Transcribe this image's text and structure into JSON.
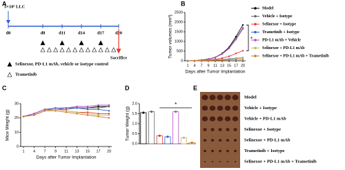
{
  "timeline": {
    "panel": "A",
    "inoculation": "5×10⁵ LLC",
    "days": [
      "d0",
      "d8",
      "d11",
      "d14",
      "d17",
      "d20"
    ],
    "end": "Sacrifice",
    "legend": [
      "Selinexor, PD-L1 mAb, vehicle or isotype control",
      "Trametinib"
    ]
  },
  "chart_data": [
    {
      "type": "line",
      "panel": "B",
      "xlabel": "Days after Tumor Implantation",
      "ylabel": "Tumor volumes (mm³)",
      "categories": [
        "1",
        "4",
        "7",
        "9",
        "11",
        "13",
        "15",
        "17",
        "20"
      ],
      "ylim": [
        0,
        2500
      ],
      "yticks": [
        0,
        500,
        1000,
        1500,
        2000,
        2500
      ],
      "annotation": "*",
      "legend": "right",
      "series": [
        {
          "name": "Model",
          "color": "#000000",
          "values": [
            0,
            10,
            40,
            90,
            180,
            380,
            700,
            1250,
            1850
          ]
        },
        {
          "name": "Vehicle + Isotype",
          "color": "#666666",
          "values": [
            0,
            10,
            40,
            80,
            170,
            360,
            650,
            1150,
            1700
          ]
        },
        {
          "name": "Selinexor + Isotype",
          "color": "#e8392f",
          "values": [
            0,
            5,
            20,
            40,
            80,
            140,
            230,
            380,
            520
          ]
        },
        {
          "name": "Trametinib + Isotype",
          "color": "#2f5fd0",
          "values": [
            0,
            5,
            15,
            30,
            50,
            70,
            100,
            130,
            160
          ]
        },
        {
          "name": "PD-L1 mAb + Vehicle",
          "color": "#b04fc4",
          "values": [
            0,
            10,
            35,
            80,
            170,
            350,
            640,
            1100,
            1650
          ]
        },
        {
          "name": "Selinexor + PD-L1 mAb",
          "color": "#c8b560",
          "values": [
            0,
            5,
            15,
            25,
            40,
            60,
            80,
            110,
            140
          ]
        },
        {
          "name": "Selinexor + PD-L1 mAb + Trametinib",
          "color": "#c87a1e",
          "values": [
            0,
            5,
            10,
            20,
            30,
            40,
            50,
            60,
            70
          ]
        }
      ]
    },
    {
      "type": "line",
      "panel": "C",
      "xlabel": "Days after Tumor Implantation",
      "ylabel": "Mice Weight (g)",
      "categories": [
        "1",
        "4",
        "7",
        "9",
        "11",
        "13",
        "15",
        "17",
        "20"
      ],
      "ylim": [
        0,
        30
      ],
      "yticks": [
        0,
        10,
        20,
        30
      ],
      "series": [
        {
          "color": "#000000",
          "values": [
            21,
            23,
            26,
            26,
            27,
            27,
            27,
            28,
            28
          ]
        },
        {
          "color": "#666666",
          "values": [
            21,
            23,
            26,
            26,
            26,
            27,
            27,
            27,
            28
          ]
        },
        {
          "color": "#e8392f",
          "values": [
            21,
            22,
            25,
            26,
            25,
            24,
            24,
            23,
            23
          ]
        },
        {
          "color": "#2f5fd0",
          "values": [
            21,
            23,
            26,
            27,
            27,
            27,
            26,
            26,
            25
          ]
        },
        {
          "color": "#b04fc4",
          "values": [
            21,
            23,
            26,
            26,
            27,
            28,
            28,
            29,
            29
          ]
        },
        {
          "color": "#c8b560",
          "values": [
            21,
            22,
            25,
            26,
            25,
            24,
            23,
            22,
            22
          ]
        },
        {
          "color": "#c87a1e",
          "values": [
            21,
            22,
            25,
            25,
            24,
            23,
            22,
            21,
            20
          ]
        }
      ]
    },
    {
      "type": "bar",
      "panel": "D",
      "ylabel": "Tumor Weight (g)",
      "values": [
        1.55,
        1.6,
        0.4,
        0.35,
        1.6,
        0.3,
        0.05
      ],
      "colors": [
        "#000000",
        "#666666",
        "#e8392f",
        "#2f5fd0",
        "#b04fc4",
        "#c8b560",
        "#c87a1e"
      ],
      "ylim": [
        0,
        2.0
      ],
      "yticks": [
        {
          "value": 0,
          "label": "0.0"
        },
        {
          "value": 0.5,
          "label": "0.5"
        },
        {
          "value": 1.0,
          "label": "1.0"
        },
        {
          "value": 1.5,
          "label": "1.5"
        },
        {
          "value": 2.0,
          "label": "2.0"
        }
      ],
      "annotation": "*"
    }
  ],
  "photo": {
    "panel": "E",
    "labels": [
      "Model",
      "Vehicle + Isotype",
      "Vehicle + PD-L1 mAb",
      "Selinexor + Isotype",
      "Selinexor + PD-L1 mAb",
      "Trametinib + Isotype",
      "Selinexor + PD-L1 mAb + Trametinib"
    ]
  }
}
